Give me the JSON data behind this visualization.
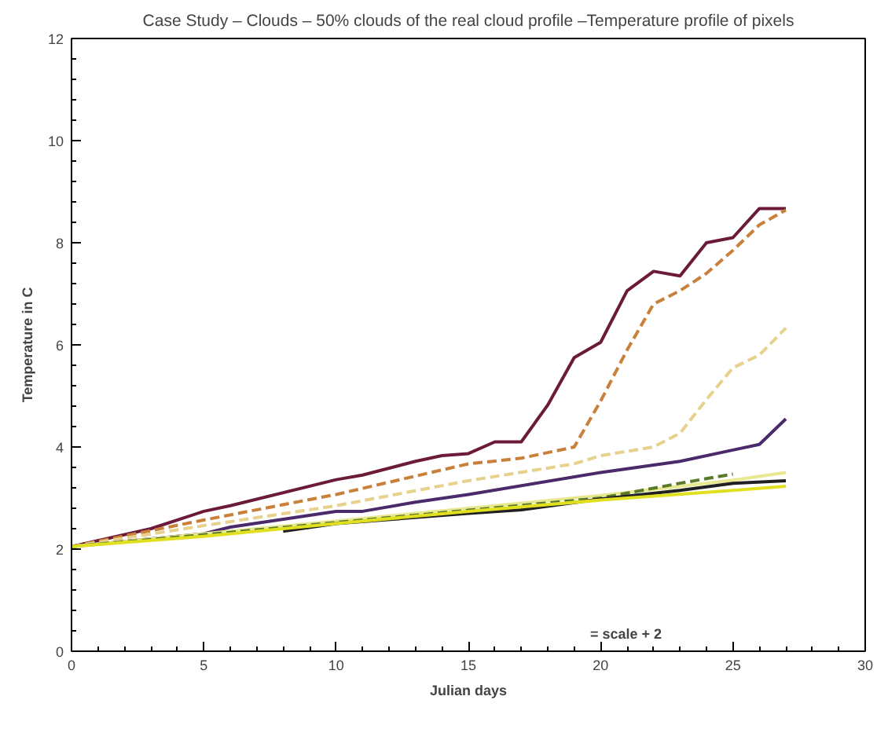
{
  "chart_data": {
    "type": "line",
    "title": "Case Study – Clouds – 50% clouds of the real cloud profile –Temperature profile of pixels",
    "xlabel": "Julian days",
    "ylabel": "Temperature in C",
    "annotations": [
      "= scale + 2"
    ],
    "xlim": [
      0,
      30
    ],
    "ylim": [
      0,
      12
    ],
    "xticks": [
      0,
      5,
      10,
      15,
      20,
      25,
      30
    ],
    "yticks": [
      0,
      2,
      4,
      6,
      8,
      10,
      12
    ],
    "series": [
      {
        "color": "#6b1a3a",
        "line_style": "solid",
        "x": [
          0,
          3,
          5,
          6,
          10,
          11,
          13,
          14,
          15,
          16,
          17,
          18,
          19,
          20,
          21,
          22,
          23,
          24,
          25,
          26,
          27
        ],
        "values": [
          2.05,
          2.4,
          2.74,
          2.85,
          3.36,
          3.45,
          3.72,
          3.83,
          3.87,
          4.1,
          4.1,
          4.82,
          5.75,
          6.05,
          7.06,
          7.44,
          7.35,
          8.0,
          8.1,
          8.67,
          8.67
        ]
      },
      {
        "color": "#c8803a",
        "line_style": "dashed",
        "x": [
          0,
          5,
          10,
          15,
          17,
          18,
          19,
          20,
          21,
          22,
          23,
          24,
          25,
          26,
          27
        ],
        "values": [
          2.05,
          2.57,
          3.07,
          3.67,
          3.78,
          3.89,
          4.0,
          4.9,
          5.9,
          6.8,
          7.06,
          7.4,
          7.85,
          8.35,
          8.64
        ]
      },
      {
        "color": "#e6d28c",
        "line_style": "dashed",
        "x": [
          0,
          5,
          10,
          15,
          19,
          20,
          22,
          23,
          24,
          25,
          26,
          27
        ],
        "values": [
          2.05,
          2.46,
          2.85,
          3.34,
          3.67,
          3.83,
          4.0,
          4.27,
          4.93,
          5.55,
          5.8,
          6.33
        ]
      },
      {
        "color": "#4a2a6a",
        "line_style": "solid",
        "x": [
          0,
          5,
          6,
          10,
          11,
          13,
          15,
          20,
          23,
          25,
          26,
          27
        ],
        "values": [
          2.05,
          2.3,
          2.43,
          2.74,
          2.74,
          2.92,
          3.07,
          3.5,
          3.72,
          3.94,
          4.05,
          4.55
        ]
      },
      {
        "color": "#e8e890",
        "line_style": "solid",
        "x": [
          0,
          5,
          10,
          15,
          20,
          25,
          27
        ],
        "values": [
          2.05,
          2.3,
          2.55,
          2.8,
          3.05,
          3.35,
          3.5
        ]
      },
      {
        "color": "#5a7a2a",
        "line_style": "dashed",
        "x": [
          0,
          5,
          10,
          15,
          20,
          23,
          25
        ],
        "values": [
          2.05,
          2.28,
          2.52,
          2.76,
          3.0,
          3.29,
          3.47
        ]
      },
      {
        "color": "#202020",
        "line_style": "solid",
        "x": [
          8,
          10,
          15,
          17,
          20,
          23,
          25,
          27
        ],
        "values": [
          2.35,
          2.5,
          2.7,
          2.77,
          2.98,
          3.15,
          3.29,
          3.34
        ]
      },
      {
        "color": "#e0e020",
        "line_style": "solid",
        "x": [
          0,
          5,
          10,
          15,
          20,
          25,
          27
        ],
        "values": [
          2.05,
          2.25,
          2.5,
          2.74,
          2.96,
          3.15,
          3.23
        ]
      }
    ]
  }
}
